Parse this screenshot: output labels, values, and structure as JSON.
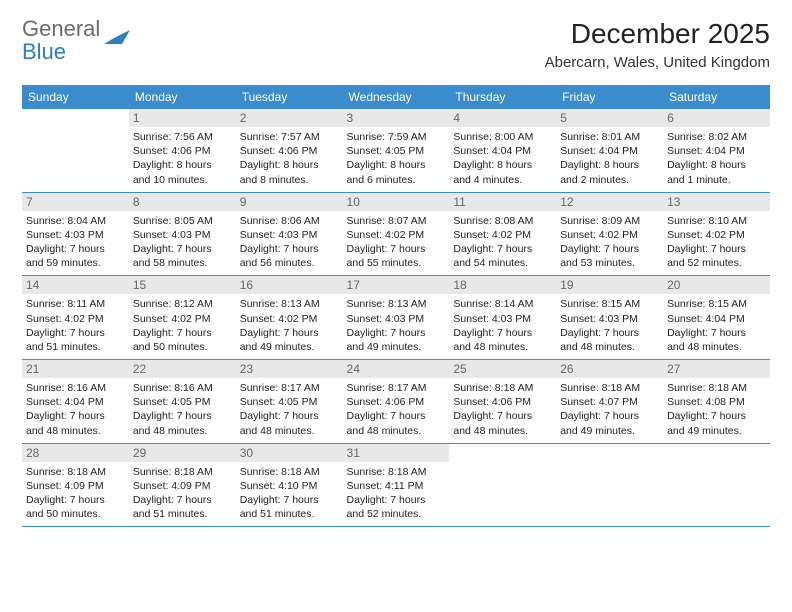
{
  "logo": {
    "text1": "General",
    "text2": "Blue"
  },
  "title": "December 2025",
  "location": "Abercarn, Wales, United Kingdom",
  "colors": {
    "header_bg": "#3a8ccc",
    "header_text": "#ffffff",
    "daynum_bg": "#e8e8e8",
    "daynum_text": "#666666",
    "border": "#3a8ccc",
    "logo_gray": "#6b6b6b",
    "logo_blue": "#2f7ec2"
  },
  "day_headers": [
    "Sunday",
    "Monday",
    "Tuesday",
    "Wednesday",
    "Thursday",
    "Friday",
    "Saturday"
  ],
  "weeks": [
    [
      null,
      {
        "n": "1",
        "sr": "Sunrise: 7:56 AM",
        "ss": "Sunset: 4:06 PM",
        "d1": "Daylight: 8 hours",
        "d2": "and 10 minutes."
      },
      {
        "n": "2",
        "sr": "Sunrise: 7:57 AM",
        "ss": "Sunset: 4:06 PM",
        "d1": "Daylight: 8 hours",
        "d2": "and 8 minutes."
      },
      {
        "n": "3",
        "sr": "Sunrise: 7:59 AM",
        "ss": "Sunset: 4:05 PM",
        "d1": "Daylight: 8 hours",
        "d2": "and 6 minutes."
      },
      {
        "n": "4",
        "sr": "Sunrise: 8:00 AM",
        "ss": "Sunset: 4:04 PM",
        "d1": "Daylight: 8 hours",
        "d2": "and 4 minutes."
      },
      {
        "n": "5",
        "sr": "Sunrise: 8:01 AM",
        "ss": "Sunset: 4:04 PM",
        "d1": "Daylight: 8 hours",
        "d2": "and 2 minutes."
      },
      {
        "n": "6",
        "sr": "Sunrise: 8:02 AM",
        "ss": "Sunset: 4:04 PM",
        "d1": "Daylight: 8 hours",
        "d2": "and 1 minute."
      }
    ],
    [
      {
        "n": "7",
        "sr": "Sunrise: 8:04 AM",
        "ss": "Sunset: 4:03 PM",
        "d1": "Daylight: 7 hours",
        "d2": "and 59 minutes."
      },
      {
        "n": "8",
        "sr": "Sunrise: 8:05 AM",
        "ss": "Sunset: 4:03 PM",
        "d1": "Daylight: 7 hours",
        "d2": "and 58 minutes."
      },
      {
        "n": "9",
        "sr": "Sunrise: 8:06 AM",
        "ss": "Sunset: 4:03 PM",
        "d1": "Daylight: 7 hours",
        "d2": "and 56 minutes."
      },
      {
        "n": "10",
        "sr": "Sunrise: 8:07 AM",
        "ss": "Sunset: 4:02 PM",
        "d1": "Daylight: 7 hours",
        "d2": "and 55 minutes."
      },
      {
        "n": "11",
        "sr": "Sunrise: 8:08 AM",
        "ss": "Sunset: 4:02 PM",
        "d1": "Daylight: 7 hours",
        "d2": "and 54 minutes."
      },
      {
        "n": "12",
        "sr": "Sunrise: 8:09 AM",
        "ss": "Sunset: 4:02 PM",
        "d1": "Daylight: 7 hours",
        "d2": "and 53 minutes."
      },
      {
        "n": "13",
        "sr": "Sunrise: 8:10 AM",
        "ss": "Sunset: 4:02 PM",
        "d1": "Daylight: 7 hours",
        "d2": "and 52 minutes."
      }
    ],
    [
      {
        "n": "14",
        "sr": "Sunrise: 8:11 AM",
        "ss": "Sunset: 4:02 PM",
        "d1": "Daylight: 7 hours",
        "d2": "and 51 minutes."
      },
      {
        "n": "15",
        "sr": "Sunrise: 8:12 AM",
        "ss": "Sunset: 4:02 PM",
        "d1": "Daylight: 7 hours",
        "d2": "and 50 minutes."
      },
      {
        "n": "16",
        "sr": "Sunrise: 8:13 AM",
        "ss": "Sunset: 4:02 PM",
        "d1": "Daylight: 7 hours",
        "d2": "and 49 minutes."
      },
      {
        "n": "17",
        "sr": "Sunrise: 8:13 AM",
        "ss": "Sunset: 4:03 PM",
        "d1": "Daylight: 7 hours",
        "d2": "and 49 minutes."
      },
      {
        "n": "18",
        "sr": "Sunrise: 8:14 AM",
        "ss": "Sunset: 4:03 PM",
        "d1": "Daylight: 7 hours",
        "d2": "and 48 minutes."
      },
      {
        "n": "19",
        "sr": "Sunrise: 8:15 AM",
        "ss": "Sunset: 4:03 PM",
        "d1": "Daylight: 7 hours",
        "d2": "and 48 minutes."
      },
      {
        "n": "20",
        "sr": "Sunrise: 8:15 AM",
        "ss": "Sunset: 4:04 PM",
        "d1": "Daylight: 7 hours",
        "d2": "and 48 minutes."
      }
    ],
    [
      {
        "n": "21",
        "sr": "Sunrise: 8:16 AM",
        "ss": "Sunset: 4:04 PM",
        "d1": "Daylight: 7 hours",
        "d2": "and 48 minutes."
      },
      {
        "n": "22",
        "sr": "Sunrise: 8:16 AM",
        "ss": "Sunset: 4:05 PM",
        "d1": "Daylight: 7 hours",
        "d2": "and 48 minutes."
      },
      {
        "n": "23",
        "sr": "Sunrise: 8:17 AM",
        "ss": "Sunset: 4:05 PM",
        "d1": "Daylight: 7 hours",
        "d2": "and 48 minutes."
      },
      {
        "n": "24",
        "sr": "Sunrise: 8:17 AM",
        "ss": "Sunset: 4:06 PM",
        "d1": "Daylight: 7 hours",
        "d2": "and 48 minutes."
      },
      {
        "n": "25",
        "sr": "Sunrise: 8:18 AM",
        "ss": "Sunset: 4:06 PM",
        "d1": "Daylight: 7 hours",
        "d2": "and 48 minutes."
      },
      {
        "n": "26",
        "sr": "Sunrise: 8:18 AM",
        "ss": "Sunset: 4:07 PM",
        "d1": "Daylight: 7 hours",
        "d2": "and 49 minutes."
      },
      {
        "n": "27",
        "sr": "Sunrise: 8:18 AM",
        "ss": "Sunset: 4:08 PM",
        "d1": "Daylight: 7 hours",
        "d2": "and 49 minutes."
      }
    ],
    [
      {
        "n": "28",
        "sr": "Sunrise: 8:18 AM",
        "ss": "Sunset: 4:09 PM",
        "d1": "Daylight: 7 hours",
        "d2": "and 50 minutes."
      },
      {
        "n": "29",
        "sr": "Sunrise: 8:18 AM",
        "ss": "Sunset: 4:09 PM",
        "d1": "Daylight: 7 hours",
        "d2": "and 51 minutes."
      },
      {
        "n": "30",
        "sr": "Sunrise: 8:18 AM",
        "ss": "Sunset: 4:10 PM",
        "d1": "Daylight: 7 hours",
        "d2": "and 51 minutes."
      },
      {
        "n": "31",
        "sr": "Sunrise: 8:18 AM",
        "ss": "Sunset: 4:11 PM",
        "d1": "Daylight: 7 hours",
        "d2": "and 52 minutes."
      },
      null,
      null,
      null
    ]
  ]
}
